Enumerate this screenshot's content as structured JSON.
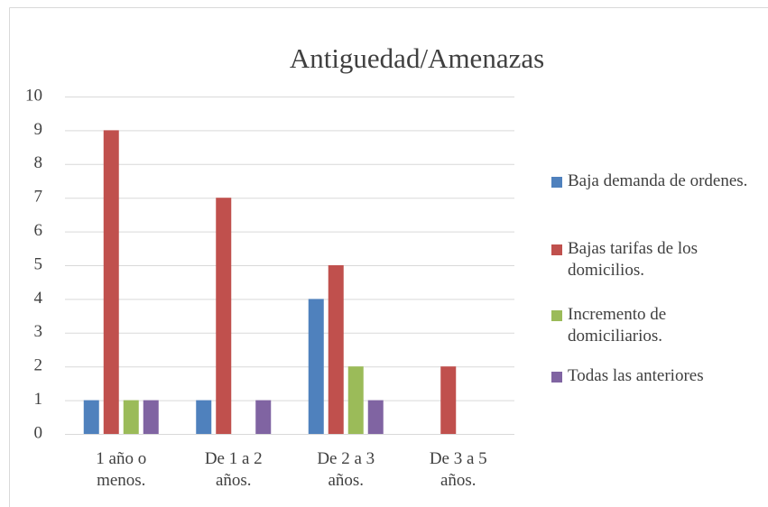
{
  "chart_data": {
    "type": "bar",
    "title": "Antiguedad/Amenazas",
    "categories": [
      "1 año o menos.",
      "De 1 a 2 años.",
      "De 2 a 3 años.",
      "De 3 a 5 años."
    ],
    "series": [
      {
        "name": "Baja demanda de ordenes.",
        "color": "#4f81bd",
        "values": [
          1,
          1,
          4,
          0
        ]
      },
      {
        "name": "Bajas tarifas de los domicilios.",
        "color": "#c0504d",
        "values": [
          9,
          7,
          5,
          2
        ]
      },
      {
        "name": "Incremento de domiciliarios.",
        "color": "#9bbb59",
        "values": [
          1,
          0,
          2,
          0
        ]
      },
      {
        "name": "Todas las anteriores",
        "color": "#8064a2",
        "values": [
          1,
          1,
          1,
          0
        ]
      }
    ],
    "ylim": [
      0,
      10
    ],
    "yticks": [
      0,
      1,
      2,
      3,
      4,
      5,
      6,
      7,
      8,
      9,
      10
    ],
    "grid": true,
    "legend": "right"
  }
}
